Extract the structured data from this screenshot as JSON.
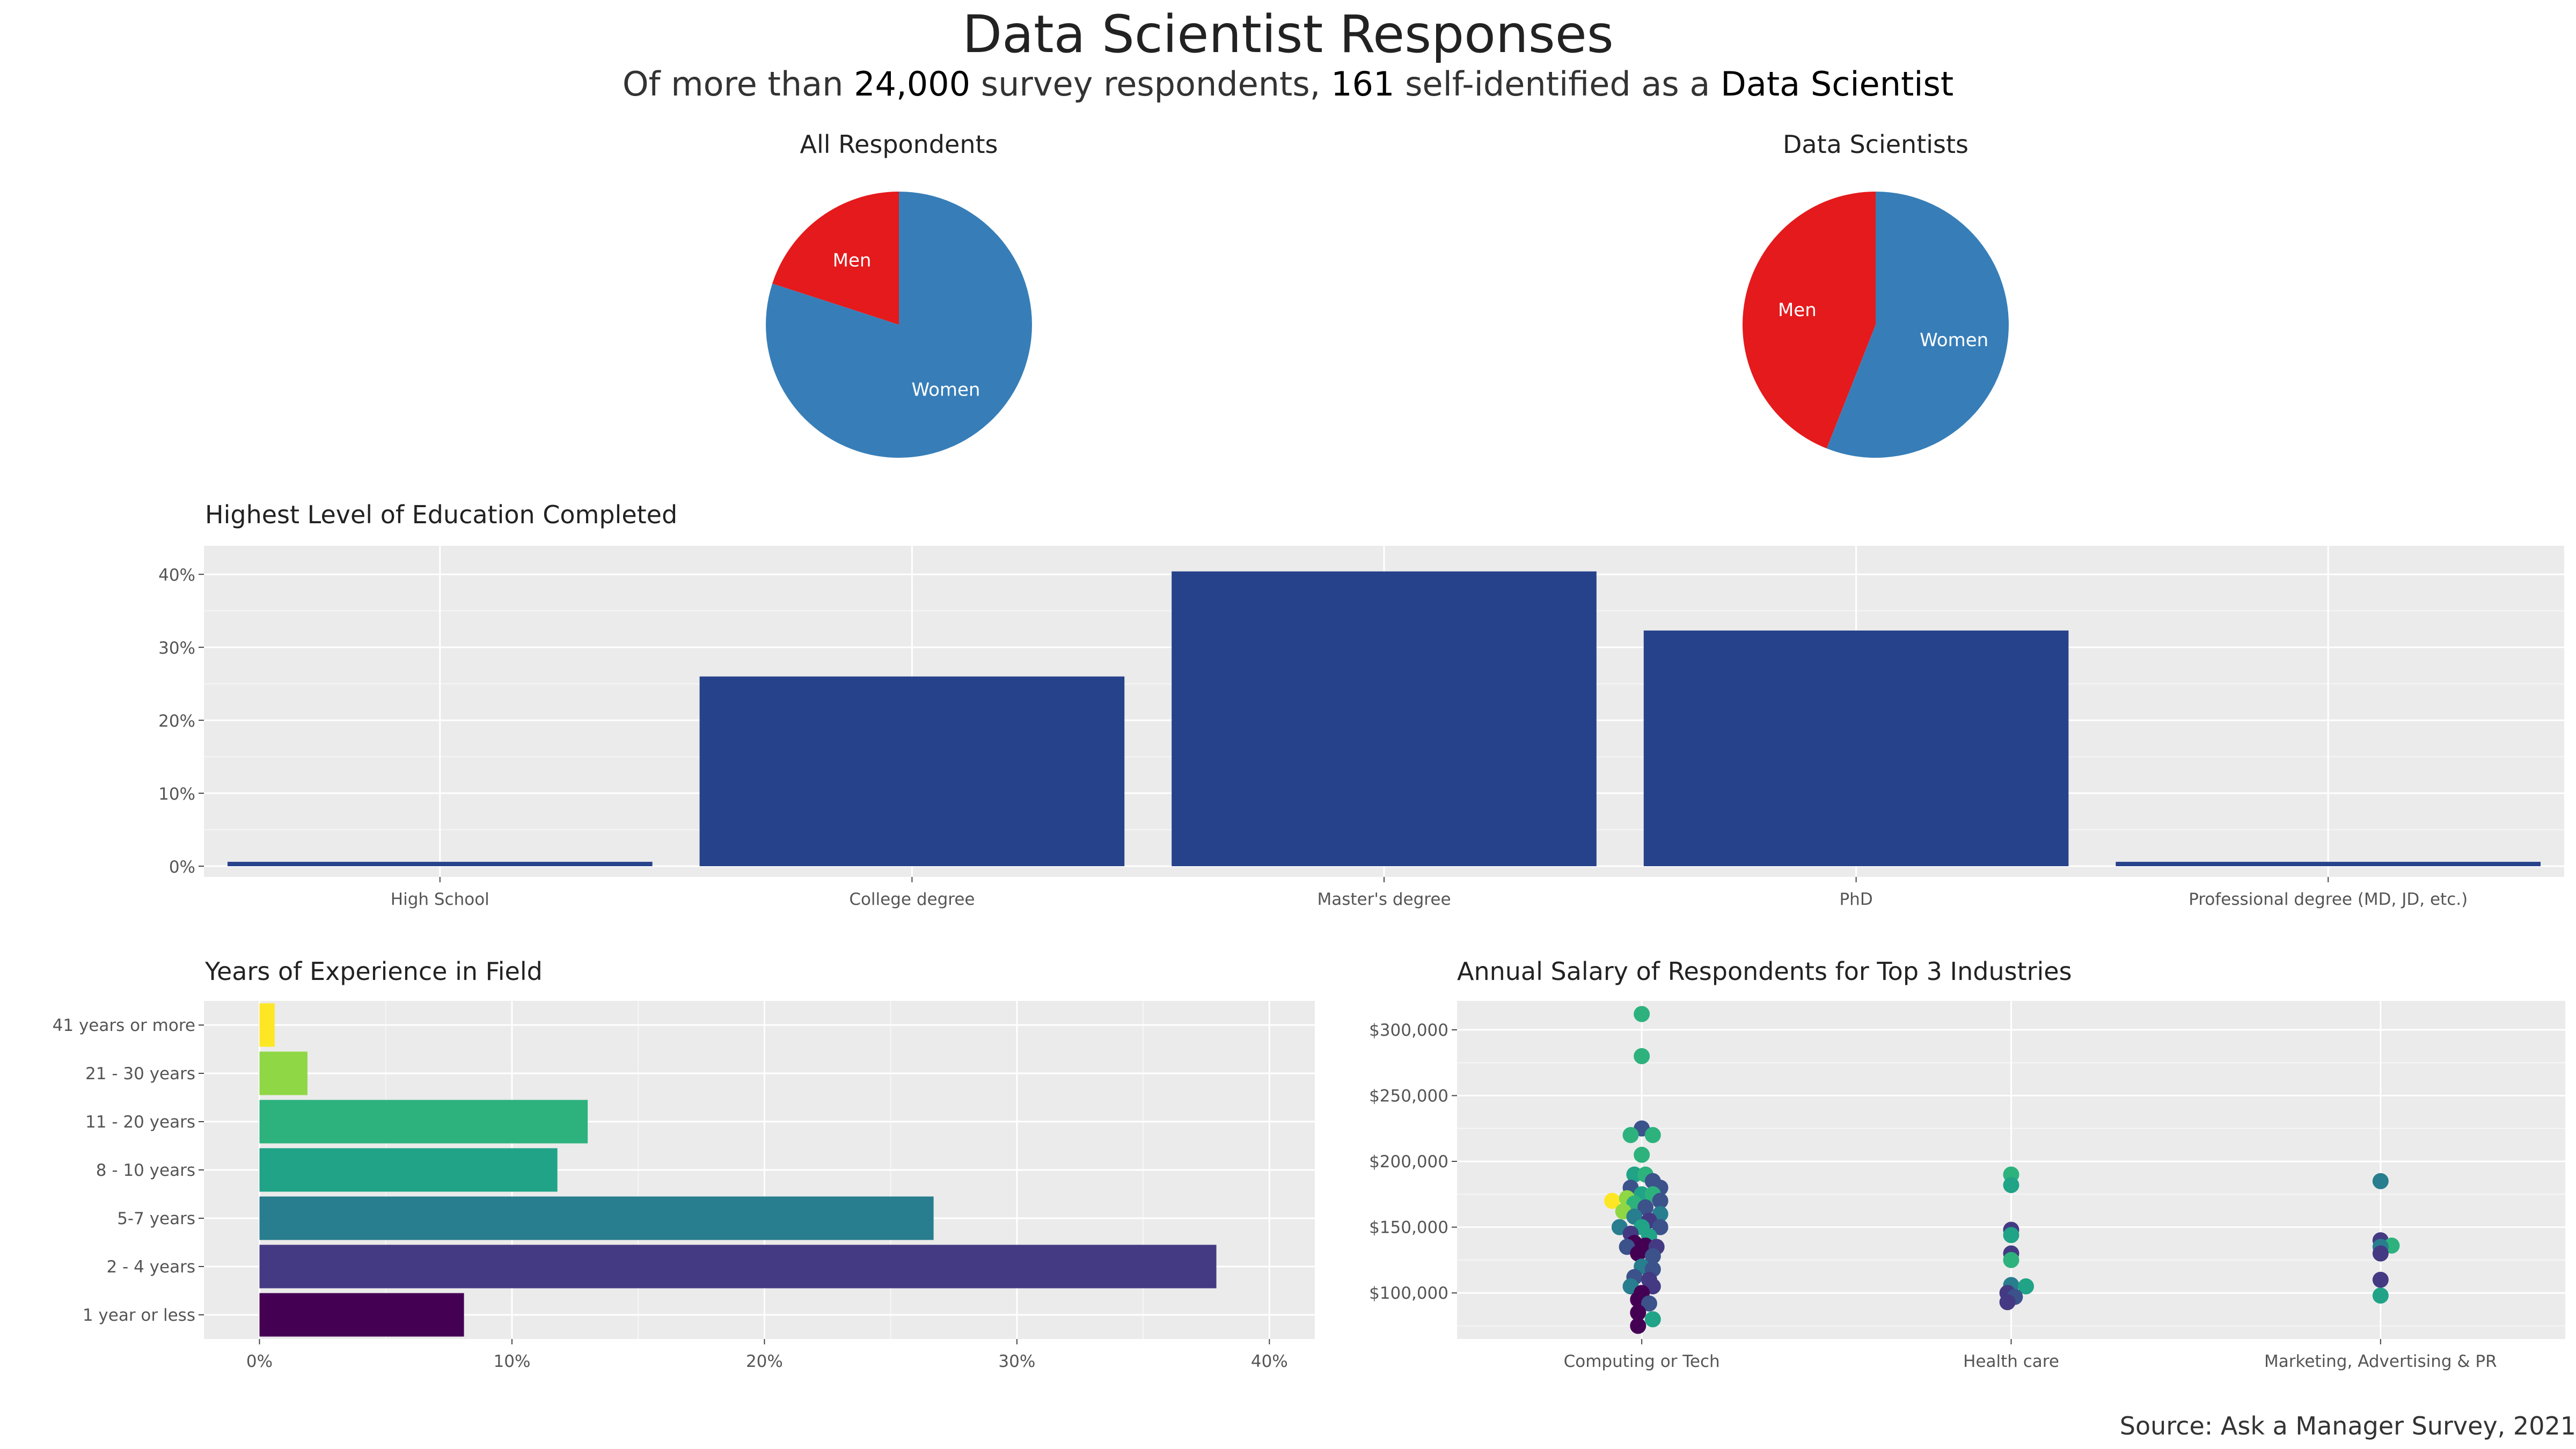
{
  "title": "Data Scientist Responses",
  "subtitle": {
    "part1": "Of more than ",
    "total": "24,000",
    "part2": " survey respondents, ",
    "count": "161",
    "part3": " self-identified as a ",
    "role": "Data Scientist"
  },
  "source": "Source: Ask a Manager Survey, 2021",
  "colors": {
    "men": "#E41A1C",
    "women": "#377EB8",
    "bar": "#26428B",
    "panel": "#EBEBEB"
  },
  "chart_data": [
    {
      "type": "pie",
      "title": "All Respondents",
      "slices": [
        {
          "label": "Men",
          "value": 0.2
        },
        {
          "label": "Women",
          "value": 0.8
        }
      ]
    },
    {
      "type": "pie",
      "title": "Data Scientists",
      "slices": [
        {
          "label": "Men",
          "value": 0.44
        },
        {
          "label": "Women",
          "value": 0.56
        }
      ]
    },
    {
      "type": "bar",
      "title": "Highest Level of Education Completed",
      "categories": [
        "High School",
        "College degree",
        "Master's degree",
        "PhD",
        "Professional degree (MD, JD, etc.)"
      ],
      "values": [
        0.6,
        26,
        40.4,
        32.3,
        0.6
      ],
      "yticks": [
        "0%",
        "10%",
        "20%",
        "30%",
        "40%"
      ],
      "ylim": [
        0,
        42
      ],
      "grid": true
    },
    {
      "type": "bar",
      "orientation": "horizontal",
      "title": "Years of Experience in Field",
      "categories": [
        "1 year or less",
        "2 - 4 years",
        "5-7 years",
        "8 - 10 years",
        "11 - 20 years",
        "21 - 30 years",
        "41 years or more"
      ],
      "values": [
        8.1,
        37.9,
        26.7,
        11.8,
        13.0,
        1.9,
        0.6
      ],
      "bar_colors": [
        "#440154",
        "#443A83",
        "#287D8E",
        "#20A386",
        "#2DB27D",
        "#8FD744",
        "#FDE725"
      ],
      "xticks": [
        "0%",
        "10%",
        "20%",
        "30%",
        "40%"
      ],
      "xlim": [
        -2.2,
        41.8
      ],
      "grid": true
    },
    {
      "type": "scatter",
      "title": "Annual Salary of Respondents for Top 3 Industries",
      "categories": [
        "Computing or Tech",
        "Health care",
        "Marketing, Advertising & PR"
      ],
      "yticks": [
        "$100,000",
        "$150,000",
        "$200,000",
        "$250,000",
        "$300,000"
      ],
      "ylim": [
        65000,
        322000
      ],
      "grid": true,
      "points": [
        {
          "cat": 0,
          "dx": 0.0,
          "y": 312000,
          "c": "#2DB27D"
        },
        {
          "cat": 0,
          "dx": 0.0,
          "y": 280000,
          "c": "#2DB27D"
        },
        {
          "cat": 0,
          "dx": 0.0,
          "y": 225000,
          "c": "#3B528B"
        },
        {
          "cat": 0,
          "dx": -0.03,
          "y": 220000,
          "c": "#2DB27D"
        },
        {
          "cat": 0,
          "dx": 0.03,
          "y": 220000,
          "c": "#2DB27D"
        },
        {
          "cat": 0,
          "dx": 0.0,
          "y": 205000,
          "c": "#2DB27D"
        },
        {
          "cat": 0,
          "dx": -0.02,
          "y": 190000,
          "c": "#20A386"
        },
        {
          "cat": 0,
          "dx": 0.01,
          "y": 190000,
          "c": "#2DB27D"
        },
        {
          "cat": 0,
          "dx": 0.03,
          "y": 185000,
          "c": "#3B528B"
        },
        {
          "cat": 0,
          "dx": -0.03,
          "y": 180000,
          "c": "#3B528B"
        },
        {
          "cat": 0,
          "dx": 0.05,
          "y": 180000,
          "c": "#3B528B"
        },
        {
          "cat": 0,
          "dx": 0.0,
          "y": 175000,
          "c": "#20A386"
        },
        {
          "cat": 0,
          "dx": 0.03,
          "y": 175000,
          "c": "#2DB27D"
        },
        {
          "cat": 0,
          "dx": -0.08,
          "y": 170000,
          "c": "#FDE725"
        },
        {
          "cat": 0,
          "dx": -0.04,
          "y": 172000,
          "c": "#8FD744"
        },
        {
          "cat": 0,
          "dx": 0.05,
          "y": 170000,
          "c": "#3B528B"
        },
        {
          "cat": 0,
          "dx": -0.02,
          "y": 168000,
          "c": "#2DB27D"
        },
        {
          "cat": 0,
          "dx": 0.01,
          "y": 165000,
          "c": "#3B528B"
        },
        {
          "cat": 0,
          "dx": -0.05,
          "y": 162000,
          "c": "#8FD744"
        },
        {
          "cat": 0,
          "dx": 0.05,
          "y": 160000,
          "c": "#287D8E"
        },
        {
          "cat": 0,
          "dx": -0.02,
          "y": 158000,
          "c": "#287D8E"
        },
        {
          "cat": 0,
          "dx": 0.02,
          "y": 155000,
          "c": "#443A83"
        },
        {
          "cat": 0,
          "dx": -0.06,
          "y": 150000,
          "c": "#287D8E"
        },
        {
          "cat": 0,
          "dx": 0.0,
          "y": 150000,
          "c": "#20A386"
        },
        {
          "cat": 0,
          "dx": 0.05,
          "y": 150000,
          "c": "#3B528B"
        },
        {
          "cat": 0,
          "dx": -0.03,
          "y": 145000,
          "c": "#443A83"
        },
        {
          "cat": 0,
          "dx": 0.02,
          "y": 143000,
          "c": "#20A386"
        },
        {
          "cat": 0,
          "dx": -0.02,
          "y": 138000,
          "c": "#440154"
        },
        {
          "cat": 0,
          "dx": 0.01,
          "y": 136000,
          "c": "#440154"
        },
        {
          "cat": 0,
          "dx": -0.04,
          "y": 135000,
          "c": "#3B528B"
        },
        {
          "cat": 0,
          "dx": 0.04,
          "y": 135000,
          "c": "#443A83"
        },
        {
          "cat": 0,
          "dx": -0.01,
          "y": 130000,
          "c": "#440154"
        },
        {
          "cat": 0,
          "dx": 0.03,
          "y": 128000,
          "c": "#3B528B"
        },
        {
          "cat": 0,
          "dx": 0.0,
          "y": 120000,
          "c": "#287D8E"
        },
        {
          "cat": 0,
          "dx": 0.03,
          "y": 118000,
          "c": "#3B528B"
        },
        {
          "cat": 0,
          "dx": -0.02,
          "y": 112000,
          "c": "#3B528B"
        },
        {
          "cat": 0,
          "dx": 0.02,
          "y": 110000,
          "c": "#443A83"
        },
        {
          "cat": 0,
          "dx": -0.03,
          "y": 105000,
          "c": "#287D8E"
        },
        {
          "cat": 0,
          "dx": 0.03,
          "y": 105000,
          "c": "#443A83"
        },
        {
          "cat": 0,
          "dx": 0.0,
          "y": 100000,
          "c": "#440154"
        },
        {
          "cat": 0,
          "dx": -0.01,
          "y": 95000,
          "c": "#440154"
        },
        {
          "cat": 0,
          "dx": 0.02,
          "y": 92000,
          "c": "#3B528B"
        },
        {
          "cat": 0,
          "dx": -0.01,
          "y": 85000,
          "c": "#440154"
        },
        {
          "cat": 0,
          "dx": 0.03,
          "y": 80000,
          "c": "#20A386"
        },
        {
          "cat": 0,
          "dx": -0.01,
          "y": 75000,
          "c": "#440154"
        },
        {
          "cat": 1,
          "dx": 0.0,
          "y": 190000,
          "c": "#2DB27D"
        },
        {
          "cat": 1,
          "dx": 0.0,
          "y": 182000,
          "c": "#20A386"
        },
        {
          "cat": 1,
          "dx": 0.0,
          "y": 148000,
          "c": "#443A83"
        },
        {
          "cat": 1,
          "dx": 0.0,
          "y": 144000,
          "c": "#20A386"
        },
        {
          "cat": 1,
          "dx": 0.0,
          "y": 130000,
          "c": "#443A83"
        },
        {
          "cat": 1,
          "dx": 0.0,
          "y": 125000,
          "c": "#2DB27D"
        },
        {
          "cat": 1,
          "dx": 0.0,
          "y": 106000,
          "c": "#287D8E"
        },
        {
          "cat": 1,
          "dx": 0.04,
          "y": 105000,
          "c": "#20A386"
        },
        {
          "cat": 1,
          "dx": -0.01,
          "y": 100000,
          "c": "#443A83"
        },
        {
          "cat": 1,
          "dx": 0.01,
          "y": 97000,
          "c": "#3B528B"
        },
        {
          "cat": 1,
          "dx": -0.01,
          "y": 93000,
          "c": "#443A83"
        },
        {
          "cat": 2,
          "dx": 0.0,
          "y": 185000,
          "c": "#287D8E"
        },
        {
          "cat": 2,
          "dx": 0.0,
          "y": 140000,
          "c": "#443A83"
        },
        {
          "cat": 2,
          "dx": 0.03,
          "y": 136000,
          "c": "#2DB27D"
        },
        {
          "cat": 2,
          "dx": 0.0,
          "y": 135000,
          "c": "#287D8E"
        },
        {
          "cat": 2,
          "dx": 0.0,
          "y": 130000,
          "c": "#443A83"
        },
        {
          "cat": 2,
          "dx": 0.0,
          "y": 110000,
          "c": "#443A83"
        },
        {
          "cat": 2,
          "dx": 0.0,
          "y": 98000,
          "c": "#20A386"
        }
      ]
    }
  ]
}
